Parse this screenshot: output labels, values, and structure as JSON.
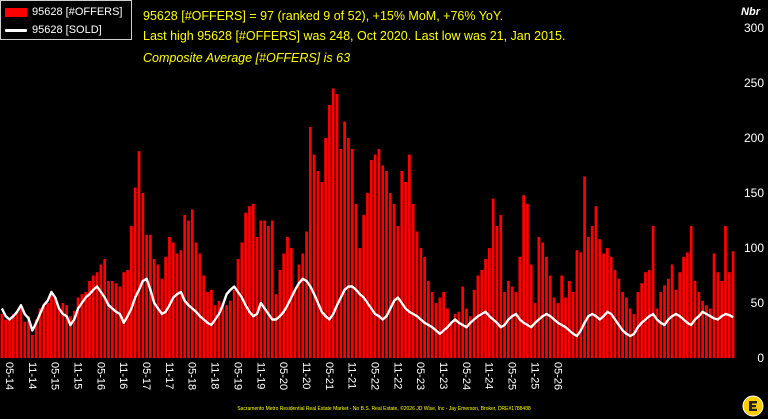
{
  "colors": {
    "background": "#000000",
    "bars": "#ff0000",
    "line": "#ffffff",
    "annotation": "#ffff00",
    "axis_text": "#ffffff",
    "footer": "#ffff00",
    "logo": "#ffcc00"
  },
  "legend": {
    "offers_label": "95628 [#OFFERS]",
    "sold_label": "95628 [SOLD]"
  },
  "annotations": {
    "line1": "95628 [#OFFERS] = 97 (ranked 9 of 52), +15% MoM, +76% YoY.",
    "line2": "Last high 95628 [#OFFERS] was 248, Oct 2020. Last low was 21, Jan 2015.",
    "line3": "Composite Average [#OFFERS] is 63"
  },
  "y_unit_label": "Nbr",
  "footer_text": "Sacramento Metro Residential Real Estate Market - No B.S. Real Estate, ©2026 JD Wise, Inc - Jay Emerson, Broker, DRE#1788488",
  "logo_icon": "brand-logo-icon",
  "chart_data": {
    "type": "bar",
    "title": "",
    "xlabel": "",
    "ylabel": "Nbr",
    "ylim": [
      0,
      300
    ],
    "y_ticks": [
      0,
      50,
      100,
      150,
      200,
      250,
      300
    ],
    "grid": false,
    "legend_position": "top-left",
    "x_tick_labels": [
      "05-14",
      "11-14",
      "05-15",
      "11-15",
      "05-16",
      "11-16",
      "05-17",
      "11-17",
      "05-18",
      "11-18",
      "05-19",
      "11-19",
      "05-20",
      "11-20",
      "05-21",
      "11-21",
      "05-22",
      "11-22",
      "05-23",
      "11-23",
      "05-24",
      "11-24",
      "05-25",
      "11-25",
      "05-26"
    ],
    "start_month": "2014-05",
    "series": [
      {
        "name": "95628 [#OFFERS]",
        "type": "bar",
        "values": [
          40,
          35,
          36,
          40,
          42,
          45,
          33,
          38,
          21,
          35,
          45,
          48,
          50,
          60,
          55,
          45,
          50,
          48,
          38,
          43,
          55,
          58,
          60,
          70,
          75,
          78,
          85,
          90,
          70,
          70,
          68,
          65,
          78,
          80,
          120,
          155,
          188,
          150,
          112,
          112,
          90,
          85,
          72,
          92,
          110,
          105,
          95,
          98,
          130,
          125,
          135,
          105,
          95,
          75,
          60,
          62,
          48,
          52,
          50,
          48,
          52,
          62,
          90,
          105,
          132,
          138,
          140,
          110,
          125,
          125,
          120,
          125,
          58,
          80,
          95,
          110,
          100,
          62,
          85,
          95,
          115,
          210,
          185,
          170,
          160,
          200,
          230,
          245,
          240,
          190,
          215,
          200,
          190,
          140,
          100,
          130,
          150,
          180,
          185,
          190,
          175,
          170,
          150,
          140,
          120,
          170,
          160,
          185,
          140,
          115,
          100,
          92,
          70,
          60,
          50,
          55,
          60,
          45,
          32,
          40,
          42,
          65,
          45,
          38,
          62,
          75,
          80,
          90,
          100,
          145,
          120,
          130,
          60,
          70,
          65,
          60,
          92,
          148,
          140,
          85,
          50,
          110,
          105,
          92,
          75,
          55,
          50,
          75,
          55,
          70,
          60,
          98,
          96,
          165,
          110,
          120,
          138,
          108,
          95,
          100,
          92,
          80,
          72,
          60,
          55,
          45,
          40,
          60,
          68,
          78,
          80,
          120,
          45,
          60,
          66,
          72,
          85,
          62,
          78,
          92,
          96,
          120,
          70,
          60,
          52,
          48,
          45,
          95,
          78,
          70,
          120,
          78,
          97
        ]
      },
      {
        "name": "95628 [SOLD]",
        "type": "line",
        "values": [
          45,
          38,
          35,
          38,
          42,
          48,
          40,
          36,
          25,
          32,
          40,
          48,
          52,
          60,
          55,
          45,
          40,
          38,
          30,
          35,
          45,
          50,
          55,
          58,
          62,
          65,
          60,
          55,
          48,
          45,
          42,
          40,
          32,
          38,
          45,
          55,
          62,
          70,
          72,
          62,
          50,
          45,
          40,
          42,
          48,
          55,
          58,
          60,
          52,
          48,
          45,
          42,
          38,
          35,
          32,
          30,
          35,
          40,
          48,
          58,
          62,
          65,
          60,
          55,
          48,
          42,
          38,
          40,
          50,
          45,
          40,
          35,
          35,
          38,
          42,
          48,
          55,
          62,
          68,
          72,
          70,
          65,
          58,
          50,
          42,
          38,
          35,
          40,
          48,
          55,
          62,
          65,
          65,
          62,
          58,
          55,
          50,
          45,
          40,
          38,
          35,
          38,
          45,
          52,
          55,
          50,
          45,
          42,
          40,
          38,
          35,
          32,
          30,
          28,
          25,
          22,
          25,
          28,
          32,
          35,
          32,
          30,
          28,
          32,
          35,
          38,
          40,
          42,
          38,
          35,
          32,
          28,
          30,
          35,
          38,
          40,
          35,
          32,
          30,
          28,
          32,
          35,
          38,
          40,
          38,
          35,
          32,
          30,
          28,
          25,
          22,
          20,
          25,
          32,
          38,
          40,
          38,
          35,
          38,
          42,
          40,
          35,
          30,
          25,
          22,
          20,
          22,
          28,
          32,
          35,
          38,
          40,
          35,
          32,
          30,
          35,
          38,
          40,
          38,
          35,
          32,
          30,
          35,
          38,
          42,
          40,
          38,
          36,
          35,
          38,
          40,
          39,
          37
        ]
      }
    ]
  }
}
